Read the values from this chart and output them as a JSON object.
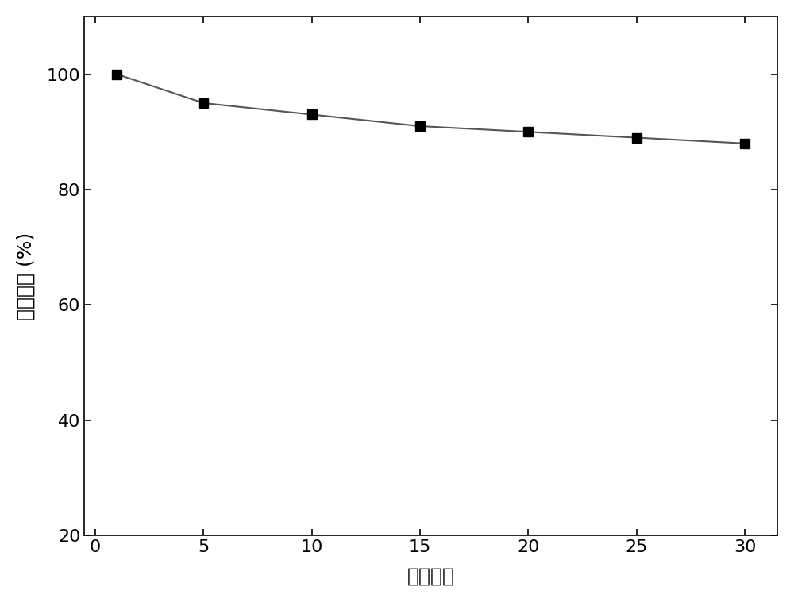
{
  "x": [
    1,
    5,
    10,
    15,
    20,
    25,
    30
  ],
  "y": [
    100,
    95,
    93,
    91,
    90,
    89,
    88
  ],
  "xlabel": "反应批次",
  "ylabel": "催化活性 (%)",
  "xlim": [
    -0.5,
    31.5
  ],
  "ylim": [
    20,
    110
  ],
  "xticks": [
    0,
    5,
    10,
    15,
    20,
    25,
    30
  ],
  "yticks": [
    20,
    40,
    60,
    80,
    100
  ],
  "line_color": "#555555",
  "marker_color": "#000000",
  "marker": "s",
  "marker_size": 8,
  "line_width": 1.5,
  "xlabel_fontsize": 18,
  "ylabel_fontsize": 18,
  "tick_fontsize": 16,
  "background_color": "#ffffff"
}
